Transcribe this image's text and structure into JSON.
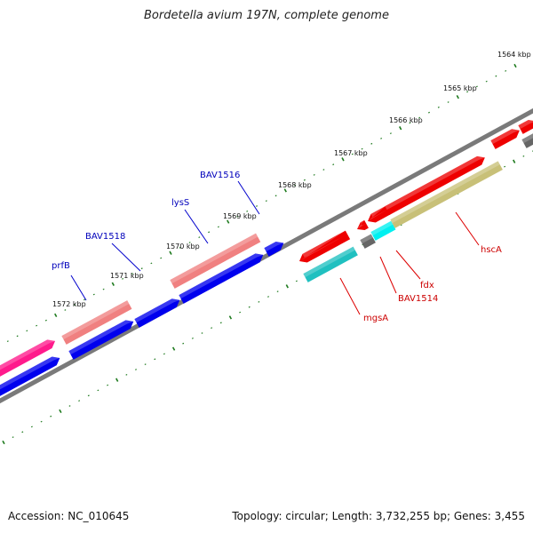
{
  "title": "Bordetella avium 197N, complete genome",
  "footer": {
    "accession": "Accession: NC_010645",
    "summary": "Topology: circular; Length: 3,732,255 bp; Genes: 3,455"
  },
  "colors": {
    "backbone": "#7a7a7a",
    "tick": "#1e7a1e",
    "gene_label_blue": "#0000bb",
    "gene_label_red": "#cc0000",
    "callout_blue": "#0000cc",
    "callout_red": "#dd0000"
  },
  "kbp_labels": [
    "1564 kbp",
    "1565 kbp",
    "1566 kbp",
    "1567 kbp",
    "1568 kbp",
    "1569 kbp",
    "1570 kbp",
    "1571 kbp",
    "1572 kbp"
  ],
  "gene_labels": {
    "top": [
      "prfB",
      "BAV1518",
      "lysS",
      "BAV1516"
    ],
    "bottom": [
      "mgsA",
      "BAV1514",
      "fdx",
      "hscA"
    ]
  }
}
